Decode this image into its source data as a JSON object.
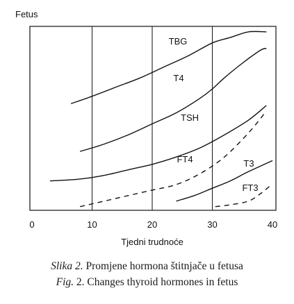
{
  "chart_data": {
    "type": "line",
    "title": "Fetus",
    "xlabel": "Tjedni trudnoće",
    "ylabel": "",
    "xlim": [
      0,
      40
    ],
    "ylim": [
      0,
      100
    ],
    "xticks": [
      0,
      10,
      20,
      30,
      40
    ],
    "grid": "vertical lines at 10, 20, 30",
    "y_axis_values_printed": false,
    "series": [
      {
        "name": "TBG",
        "style": "solid",
        "x": [
          6.5,
          10,
          14,
          18,
          22,
          26,
          30,
          33,
          36,
          39
        ],
        "y": [
          58,
          62,
          67,
          72,
          78,
          84,
          91,
          94,
          97,
          97
        ]
      },
      {
        "name": "T4",
        "style": "solid",
        "x": [
          8,
          12,
          16,
          20,
          24,
          28,
          30,
          32,
          35,
          38,
          39
        ],
        "y": [
          32,
          36,
          41,
          47,
          53,
          61,
          66,
          72,
          80,
          87,
          88
        ]
      },
      {
        "name": "TSH",
        "style": "solid",
        "x": [
          3,
          8,
          12,
          16,
          20,
          24,
          28,
          32,
          36,
          39
        ],
        "y": [
          16,
          17,
          19,
          22,
          25,
          29,
          34,
          41,
          49,
          57
        ]
      },
      {
        "name": "FT4",
        "style": "dashed",
        "x": [
          8,
          12,
          16,
          20,
          24,
          28,
          32,
          36,
          39
        ],
        "y": [
          2,
          5,
          8,
          11,
          14,
          20,
          29,
          42,
          54
        ]
      },
      {
        "name": "T3",
        "style": "solid",
        "x": [
          24,
          27,
          30,
          33,
          36,
          40
        ],
        "y": [
          5,
          8,
          12,
          16,
          21,
          27
        ]
      },
      {
        "name": "FT3",
        "style": "dashed",
        "x": [
          30.5,
          33,
          36,
          38,
          39.5
        ],
        "y": [
          2,
          3,
          5,
          9,
          13
        ]
      }
    ],
    "annotations": [
      {
        "text": "TBG",
        "series": "TBG"
      },
      {
        "text": "T4",
        "series": "T4"
      },
      {
        "text": "TSH",
        "series": "TSH"
      },
      {
        "text": "FT4",
        "series": "FT4"
      },
      {
        "text": "T3",
        "series": "T3"
      },
      {
        "text": "FT3",
        "series": "FT3"
      }
    ]
  },
  "caption": {
    "line1_label": "Slika 2.",
    "line1_text": " Promjene hormona štitnjače u fetusa",
    "line2_label": "Fig.",
    "line2_text": " 2. Changes thyroid hormones in fetus"
  }
}
